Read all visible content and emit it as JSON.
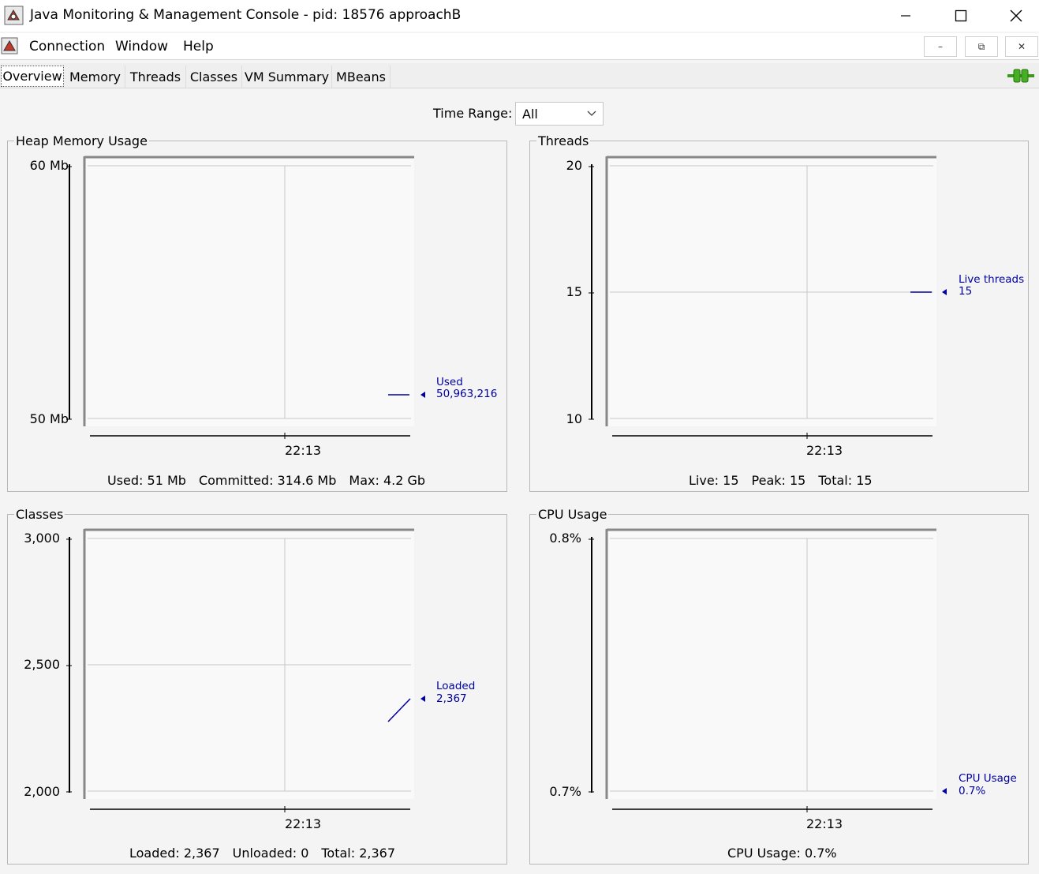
{
  "window": {
    "title": "Java Monitoring & Management Console - pid: 18576 approachB",
    "minimize_icon": "minimize-icon",
    "maximize_icon": "maximize-icon",
    "close_icon": "close-icon"
  },
  "menu": {
    "items": [
      "Connection",
      "Window",
      "Help"
    ],
    "mdi_minimize": "–",
    "mdi_restore": "⧉",
    "mdi_close": "✕"
  },
  "tabs": [
    "Overview",
    "Memory",
    "Threads",
    "Classes",
    "VM Summary",
    "MBeans"
  ],
  "active_tab": "Overview",
  "time_range": {
    "label": "Time Range:",
    "value": "All"
  },
  "series_color": "#0000a0",
  "connection_icon": "connection-plug-icon",
  "panels": {
    "heap": {
      "title": "Heap Memory Usage",
      "y_ticks": [
        "60 Mb",
        "50 Mb"
      ],
      "x_tick": "22:13",
      "legend_name": "Used",
      "legend_value": "50,963,216",
      "summary": [
        "Used: 51 Mb",
        "Committed: 314.6 Mb",
        "Max: 4.2 Gb"
      ]
    },
    "threads": {
      "title": "Threads",
      "y_ticks": [
        "20",
        "15",
        "10"
      ],
      "x_tick": "22:13",
      "legend_name": "Live threads",
      "legend_value": "15",
      "summary": [
        "Live: 15",
        "Peak: 15",
        "Total: 15"
      ]
    },
    "classes": {
      "title": "Classes",
      "y_ticks": [
        "3,000",
        "2,500",
        "2,000"
      ],
      "x_tick": "22:13",
      "legend_name": "Loaded",
      "legend_value": "2,367",
      "summary": [
        "Loaded: 2,367",
        "Unloaded: 0",
        "Total: 2,367"
      ]
    },
    "cpu": {
      "title": "CPU Usage",
      "y_ticks": [
        "0.8%",
        "0.7%"
      ],
      "x_tick": "22:13",
      "legend_name": "CPU Usage",
      "legend_value": "0.7%",
      "summary": [
        "CPU Usage: 0.7%"
      ]
    }
  }
}
